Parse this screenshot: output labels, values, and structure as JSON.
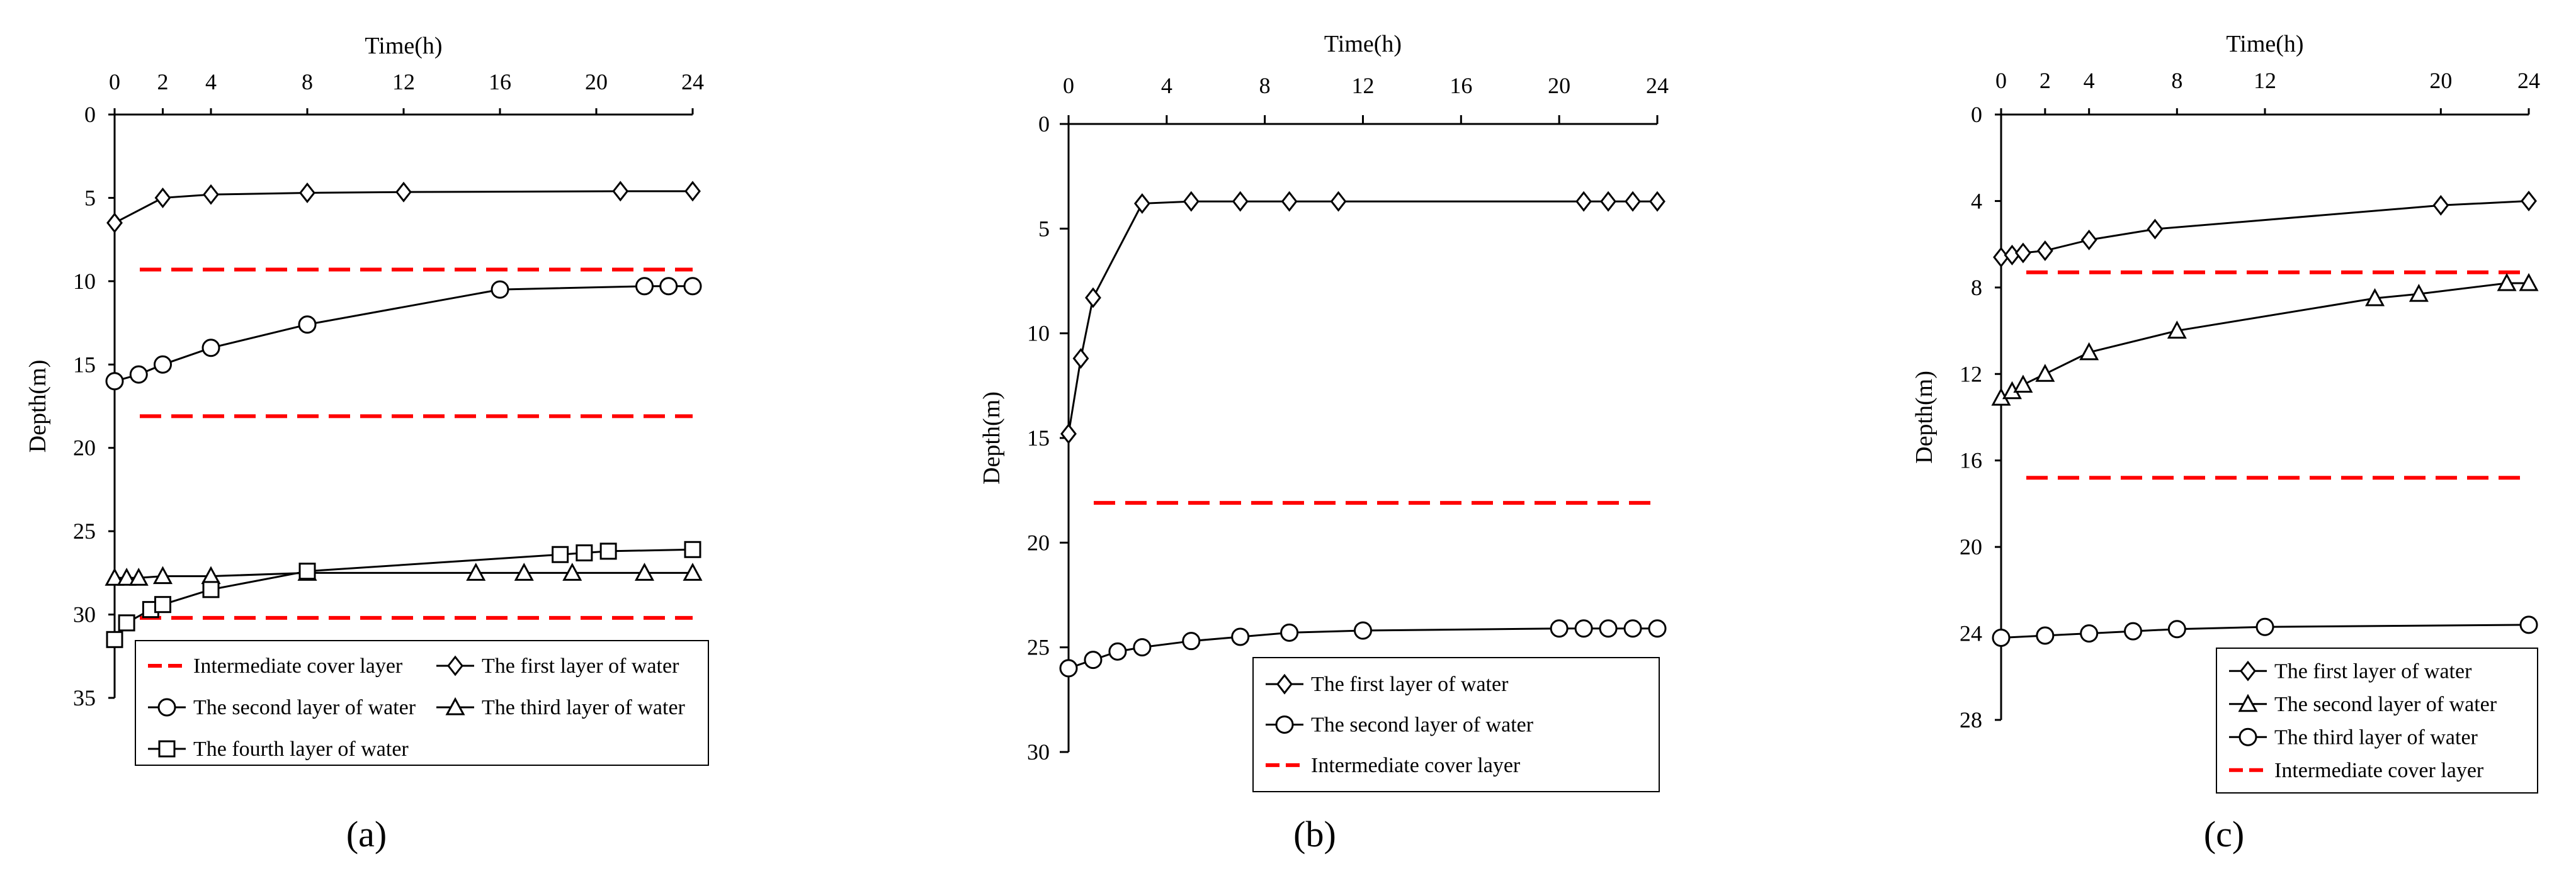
{
  "chart_data": [
    {
      "panel": "a",
      "type": "line",
      "label": "(a)",
      "xlabel": "Time(h)",
      "ylabel": "Depth(m)",
      "xlim": [
        0,
        24
      ],
      "ylim": [
        0,
        35
      ],
      "x_ticks": [
        0,
        2,
        4,
        8,
        12,
        16,
        20,
        24
      ],
      "y_ticks": [
        0,
        5,
        10,
        15,
        20,
        25,
        30,
        35
      ],
      "series": [
        {
          "name": "The first layer of water",
          "marker": "diamond",
          "x": [
            0,
            2,
            4,
            8,
            12,
            21,
            24
          ],
          "y": [
            6.5,
            5.0,
            4.8,
            4.7,
            4.65,
            4.6,
            4.6
          ]
        },
        {
          "name": "The second layer of water",
          "marker": "circle",
          "x": [
            0,
            1,
            2,
            4,
            8,
            16,
            22,
            23,
            24
          ],
          "y": [
            16.0,
            15.6,
            15.0,
            14.0,
            12.6,
            10.5,
            10.3,
            10.3,
            10.3
          ]
        },
        {
          "name": "The third layer of water",
          "marker": "triangle",
          "x": [
            0,
            0.5,
            1,
            2,
            4,
            8,
            15,
            17,
            19,
            22,
            24
          ],
          "y": [
            27.8,
            27.8,
            27.8,
            27.7,
            27.7,
            27.5,
            27.5,
            27.5,
            27.5,
            27.5,
            27.5
          ]
        },
        {
          "name": "The fourth layer of water",
          "marker": "square",
          "x": [
            0,
            0.5,
            1.5,
            2,
            4,
            8,
            18.5,
            19.5,
            20.5,
            24
          ],
          "y": [
            31.5,
            30.5,
            29.7,
            29.4,
            28.5,
            27.4,
            26.4,
            26.3,
            26.2,
            26.1
          ]
        }
      ],
      "cover_layers": [
        9.3,
        18.1,
        30.2
      ],
      "legend": [
        "Intermediate cover layer",
        "The first layer of water",
        "The second layer of water",
        "The third layer of water",
        "The fourth layer of water"
      ]
    },
    {
      "panel": "b",
      "type": "line",
      "label": "(b)",
      "xlabel": "Time(h)",
      "ylabel": "Depth(m)",
      "xlim": [
        0,
        24
      ],
      "ylim": [
        0,
        30
      ],
      "x_ticks": [
        0,
        4,
        8,
        12,
        16,
        20,
        24
      ],
      "y_ticks": [
        0,
        5,
        10,
        15,
        20,
        25,
        30
      ],
      "series": [
        {
          "name": "The first layer of water",
          "marker": "diamond",
          "x": [
            0,
            0.5,
            1,
            3,
            5,
            7,
            9,
            11,
            21,
            22,
            23,
            24
          ],
          "y": [
            14.8,
            11.2,
            8.3,
            3.8,
            3.7,
            3.7,
            3.7,
            3.7,
            3.7,
            3.7,
            3.7,
            3.7
          ]
        },
        {
          "name": "The second layer of water",
          "marker": "circle",
          "x": [
            0,
            1,
            2,
            3,
            5,
            7,
            9,
            12,
            20,
            21,
            22,
            23,
            24
          ],
          "y": [
            26.0,
            25.6,
            25.2,
            25.0,
            24.7,
            24.5,
            24.3,
            24.2,
            24.1,
            24.1,
            24.1,
            24.1,
            24.1
          ]
        }
      ],
      "cover_layers": [
        18.1
      ],
      "legend": [
        "The first layer of water",
        "The second layer of water",
        "Intermediate cover layer"
      ]
    },
    {
      "panel": "c",
      "type": "line",
      "label": "(c)",
      "xlabel": "Time(h)",
      "ylabel": "Depth(m)",
      "xlim": [
        0,
        24
      ],
      "ylim": [
        0,
        28
      ],
      "x_ticks": [
        0,
        2,
        4,
        8,
        12,
        20,
        24
      ],
      "y_ticks": [
        0,
        4,
        8,
        12,
        16,
        20,
        24,
        28
      ],
      "series": [
        {
          "name": "The first layer of water",
          "marker": "diamond",
          "x": [
            0,
            0.5,
            1,
            2,
            4,
            7,
            20,
            24
          ],
          "y": [
            6.6,
            6.5,
            6.4,
            6.3,
            5.8,
            5.3,
            4.2,
            4.0
          ]
        },
        {
          "name": "The second layer of water",
          "marker": "triangle",
          "x": [
            0,
            0.5,
            1,
            2,
            4,
            8,
            17,
            19,
            23,
            24
          ],
          "y": [
            13.1,
            12.8,
            12.5,
            12.0,
            11.0,
            10.0,
            8.5,
            8.3,
            7.8,
            7.8
          ]
        },
        {
          "name": "The third layer of water",
          "marker": "circle",
          "x": [
            0,
            2,
            4,
            6,
            8,
            12,
            24
          ],
          "y": [
            24.2,
            24.1,
            24.0,
            23.9,
            23.8,
            23.7,
            23.6
          ]
        }
      ],
      "cover_layers": [
        7.3,
        16.8
      ],
      "legend": [
        "The first layer of water",
        "The second layer of water",
        "The third layer of water",
        "Intermediate cover layer"
      ]
    }
  ]
}
